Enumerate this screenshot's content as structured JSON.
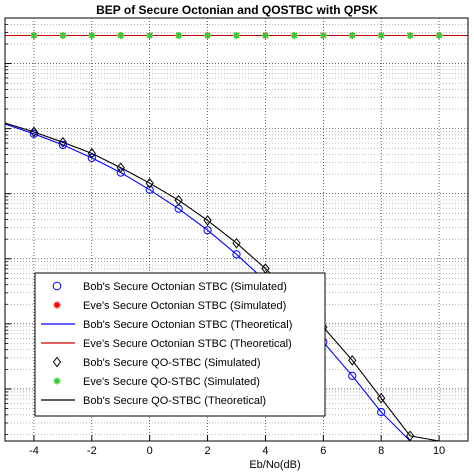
{
  "chart_data": {
    "type": "line",
    "title": "BEP of Secure Octonian and QOSTBC with QPSK",
    "xlabel": "Eb/No(dB)",
    "ylabel": "",
    "xlim": [
      -5,
      11
    ],
    "ylim_log10": [
      -5.8,
      0.7
    ],
    "y_scale": "log",
    "grid": true,
    "legend_position": "bottom-left",
    "x_ticks": [
      "-4",
      "-2",
      "0",
      "2",
      "4",
      "6",
      "8",
      "10"
    ],
    "series": [
      {
        "name": "Bob's Secure Octonian STBC (Simulated)",
        "style": "markers",
        "marker": "circle",
        "color": "#0000ff",
        "x": [
          -5,
          -4,
          -3,
          -2,
          -1,
          0,
          1,
          2,
          3,
          4,
          5,
          6,
          7,
          8,
          9,
          10
        ],
        "y": [
          0.118,
          0.0832,
          0.0562,
          0.0355,
          0.0211,
          0.0115,
          0.00589,
          0.00275,
          0.00117,
          0.000457,
          0.000159,
          5.25e-05,
          1.59e-05,
          4.4e-06,
          1.1e-06,
          2.3e-07
        ]
      },
      {
        "name": "Eve's Secure Octonian STBC (Simulated)",
        "style": "markers",
        "marker": "star",
        "color": "#ff0000",
        "x": [
          -5,
          -4,
          -3,
          -2,
          -1,
          0,
          1,
          2,
          3,
          4,
          5,
          6,
          7,
          8,
          9,
          10
        ],
        "y": [
          2.7,
          2.7,
          2.7,
          2.7,
          2.7,
          2.7,
          2.7,
          2.7,
          2.7,
          2.7,
          2.7,
          2.7,
          2.7,
          2.7,
          2.7,
          2.7
        ]
      },
      {
        "name": "Bob's Secure Octonian STBC (Theoretical)",
        "style": "line",
        "color": "#0000ff",
        "x": [
          -5,
          -4,
          -3,
          -2,
          -1,
          0,
          1,
          2,
          3,
          4,
          5,
          6,
          7,
          8,
          9,
          10,
          11
        ],
        "y": [
          0.118,
          0.0832,
          0.0562,
          0.0355,
          0.0211,
          0.0115,
          0.00589,
          0.00275,
          0.00117,
          0.000457,
          0.000159,
          5.25e-05,
          1.59e-05,
          4.4e-06,
          1.1e-06,
          2.3e-07,
          5e-08
        ]
      },
      {
        "name": "Eve's Secure Octonian STBC (Theoretical)",
        "style": "line",
        "color": "#cc0000",
        "x": [
          -5,
          11
        ],
        "y": [
          2.7,
          2.7
        ]
      },
      {
        "name": "Bob's Secure QO-STBC (Simulated)",
        "style": "markers",
        "marker": "diamond",
        "color": "#000000",
        "x": [
          -5,
          -4,
          -3,
          -2,
          -1,
          0,
          1,
          2,
          3,
          4,
          5,
          6,
          7,
          8,
          9,
          10
        ],
        "y": [
          0.122,
          0.0891,
          0.0617,
          0.0417,
          0.0251,
          0.0145,
          0.00794,
          0.00389,
          0.00174,
          0.000708,
          0.000263,
          8.91e-05,
          2.75e-05,
          7.2e-06,
          1.9e-06,
          4.2e-07
        ]
      },
      {
        "name": "Eve's Secure QO-STBC (Simulated)",
        "style": "markers",
        "marker": "star",
        "color": "#33cc33",
        "x": [
          -5,
          -4,
          -3,
          -2,
          -1,
          0,
          1,
          2,
          3,
          4,
          5,
          6,
          7,
          8,
          9,
          10
        ],
        "y": [
          2.7,
          2.7,
          2.7,
          2.7,
          2.7,
          2.7,
          2.7,
          2.7,
          2.7,
          2.7,
          2.7,
          2.7,
          2.7,
          2.7,
          2.7,
          2.7
        ]
      },
      {
        "name": "Bob's Secure QO-STBC (Theoretical)",
        "style": "line",
        "color": "#000000",
        "x": [
          -5,
          -4,
          -3,
          -2,
          -1,
          0,
          1,
          2,
          3,
          4,
          5,
          6,
          7,
          8,
          9,
          10,
          11
        ],
        "y": [
          0.122,
          0.0891,
          0.0617,
          0.0417,
          0.0251,
          0.0145,
          0.00794,
          0.00389,
          0.00174,
          0.000708,
          0.000263,
          8.91e-05,
          2.75e-05,
          7.2e-06,
          1.9e-06,
          4.2e-07,
          9e-08
        ]
      }
    ]
  }
}
